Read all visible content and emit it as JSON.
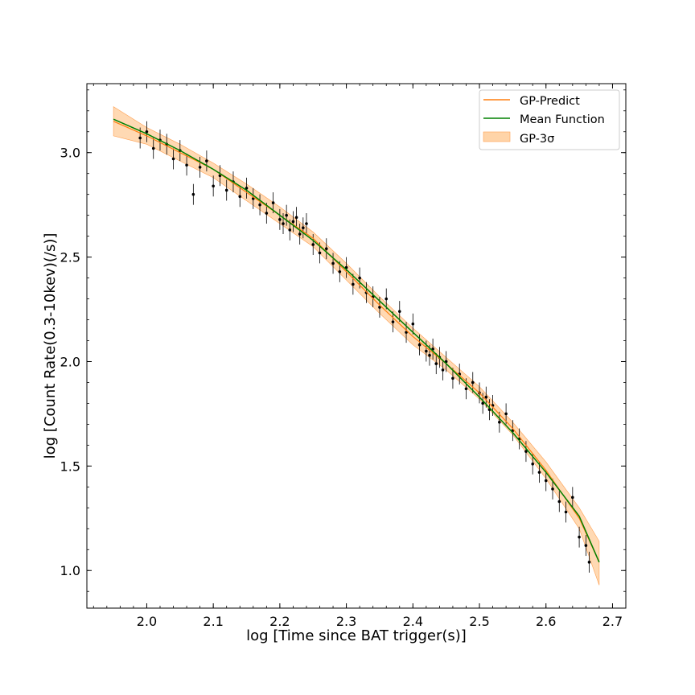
{
  "chart_data": {
    "type": "line",
    "xlabel": "log [Time since BAT trigger(s)]",
    "ylabel": "log [Count Rate(0.3-10kev)(/s)]",
    "xlim": [
      1.91,
      2.72
    ],
    "ylim": [
      0.82,
      3.33
    ],
    "xticks": [
      2.0,
      2.1,
      2.2,
      2.3,
      2.4,
      2.5,
      2.6,
      2.7
    ],
    "xtick_labels": [
      "2.0",
      "2.1",
      "2.2",
      "2.3",
      "2.4",
      "2.5",
      "2.6",
      "2.7"
    ],
    "yticks": [
      1.0,
      1.5,
      2.0,
      2.5,
      3.0
    ],
    "ytick_labels": [
      "1.0",
      "1.5",
      "2.0",
      "2.5",
      "3.0"
    ],
    "grid": false,
    "legend": {
      "placement": "top-right",
      "entries": [
        {
          "label": "GP-Predict",
          "color": "#ff7f0e",
          "kind": "line"
        },
        {
          "label": "Mean Function",
          "color": "#008000",
          "kind": "line"
        },
        {
          "label": "GP-3σ",
          "color": "#ffcc99",
          "kind": "band"
        }
      ]
    },
    "series": [
      {
        "name": "GP-Predict",
        "kind": "line",
        "color": "#ff7f0e",
        "x": [
          1.95,
          2.0,
          2.05,
          2.1,
          2.15,
          2.2,
          2.25,
          2.3,
          2.35,
          2.4,
          2.45,
          2.5,
          2.55,
          2.6,
          2.65,
          2.68
        ],
        "y": [
          3.15,
          3.08,
          3.0,
          2.92,
          2.81,
          2.7,
          2.59,
          2.43,
          2.27,
          2.12,
          1.99,
          1.85,
          1.68,
          1.48,
          1.25,
          1.04
        ]
      },
      {
        "name": "Mean Function",
        "kind": "line",
        "color": "#008000",
        "x": [
          1.95,
          2.0,
          2.05,
          2.1,
          2.15,
          2.2,
          2.25,
          2.3,
          2.35,
          2.4,
          2.45,
          2.5,
          2.55,
          2.6,
          2.65,
          2.68
        ],
        "y": [
          3.16,
          3.09,
          3.01,
          2.92,
          2.82,
          2.7,
          2.58,
          2.44,
          2.29,
          2.14,
          1.99,
          1.83,
          1.66,
          1.47,
          1.26,
          1.04
        ]
      },
      {
        "name": "GP-3σ",
        "kind": "band",
        "color": "#ffcc99",
        "x": [
          1.95,
          2.0,
          2.05,
          2.1,
          2.15,
          2.2,
          2.25,
          2.3,
          2.35,
          2.4,
          2.45,
          2.5,
          2.55,
          2.6,
          2.65,
          2.68
        ],
        "upper": [
          3.22,
          3.12,
          3.04,
          2.95,
          2.85,
          2.74,
          2.62,
          2.47,
          2.31,
          2.16,
          2.02,
          1.88,
          1.71,
          1.52,
          1.3,
          1.14
        ],
        "lower": [
          3.08,
          3.04,
          2.96,
          2.88,
          2.77,
          2.66,
          2.55,
          2.39,
          2.23,
          2.08,
          1.96,
          1.82,
          1.65,
          1.44,
          1.2,
          0.93
        ]
      },
      {
        "kind": "errorbar",
        "color": "#000000",
        "x": [
          1.99,
          2.0,
          2.01,
          2.02,
          2.03,
          2.04,
          2.05,
          2.06,
          2.07,
          2.08,
          2.09,
          2.1,
          2.11,
          2.12,
          2.13,
          2.14,
          2.15,
          2.16,
          2.17,
          2.18,
          2.19,
          2.2,
          2.205,
          2.21,
          2.215,
          2.22,
          2.225,
          2.23,
          2.235,
          2.24,
          2.25,
          2.26,
          2.27,
          2.28,
          2.29,
          2.3,
          2.31,
          2.32,
          2.33,
          2.34,
          2.35,
          2.36,
          2.37,
          2.38,
          2.39,
          2.4,
          2.41,
          2.42,
          2.425,
          2.43,
          2.435,
          2.44,
          2.445,
          2.45,
          2.46,
          2.47,
          2.48,
          2.49,
          2.5,
          2.505,
          2.51,
          2.515,
          2.52,
          2.53,
          2.54,
          2.55,
          2.56,
          2.57,
          2.58,
          2.59,
          2.6,
          2.61,
          2.62,
          2.63,
          2.64,
          2.65,
          2.66,
          2.665
        ],
        "y": [
          3.07,
          3.1,
          3.02,
          3.06,
          3.04,
          2.97,
          3.01,
          2.94,
          2.8,
          2.93,
          2.96,
          2.84,
          2.89,
          2.82,
          2.86,
          2.79,
          2.83,
          2.78,
          2.75,
          2.71,
          2.76,
          2.68,
          2.66,
          2.7,
          2.63,
          2.67,
          2.69,
          2.61,
          2.64,
          2.66,
          2.56,
          2.52,
          2.54,
          2.47,
          2.43,
          2.45,
          2.37,
          2.4,
          2.33,
          2.31,
          2.26,
          2.3,
          2.19,
          2.24,
          2.14,
          2.18,
          2.08,
          2.05,
          2.03,
          2.06,
          1.99,
          2.02,
          1.96,
          2.0,
          1.92,
          1.94,
          1.87,
          1.9,
          1.85,
          1.8,
          1.83,
          1.77,
          1.79,
          1.71,
          1.75,
          1.67,
          1.63,
          1.57,
          1.51,
          1.47,
          1.43,
          1.39,
          1.33,
          1.28,
          1.35,
          1.16,
          1.12,
          1.04
        ],
        "err": [
          0.05,
          0.05,
          0.05,
          0.05,
          0.05,
          0.05,
          0.05,
          0.05,
          0.05,
          0.05,
          0.05,
          0.05,
          0.05,
          0.05,
          0.05,
          0.05,
          0.05,
          0.05,
          0.05,
          0.05,
          0.05,
          0.05,
          0.05,
          0.05,
          0.05,
          0.05,
          0.05,
          0.05,
          0.05,
          0.05,
          0.05,
          0.05,
          0.05,
          0.05,
          0.05,
          0.05,
          0.05,
          0.05,
          0.05,
          0.05,
          0.05,
          0.05,
          0.05,
          0.05,
          0.05,
          0.05,
          0.05,
          0.05,
          0.05,
          0.05,
          0.05,
          0.05,
          0.05,
          0.05,
          0.05,
          0.05,
          0.05,
          0.05,
          0.05,
          0.05,
          0.05,
          0.05,
          0.05,
          0.05,
          0.05,
          0.05,
          0.05,
          0.05,
          0.05,
          0.05,
          0.05,
          0.05,
          0.05,
          0.05,
          0.05,
          0.05,
          0.05,
          0.05
        ]
      }
    ]
  }
}
